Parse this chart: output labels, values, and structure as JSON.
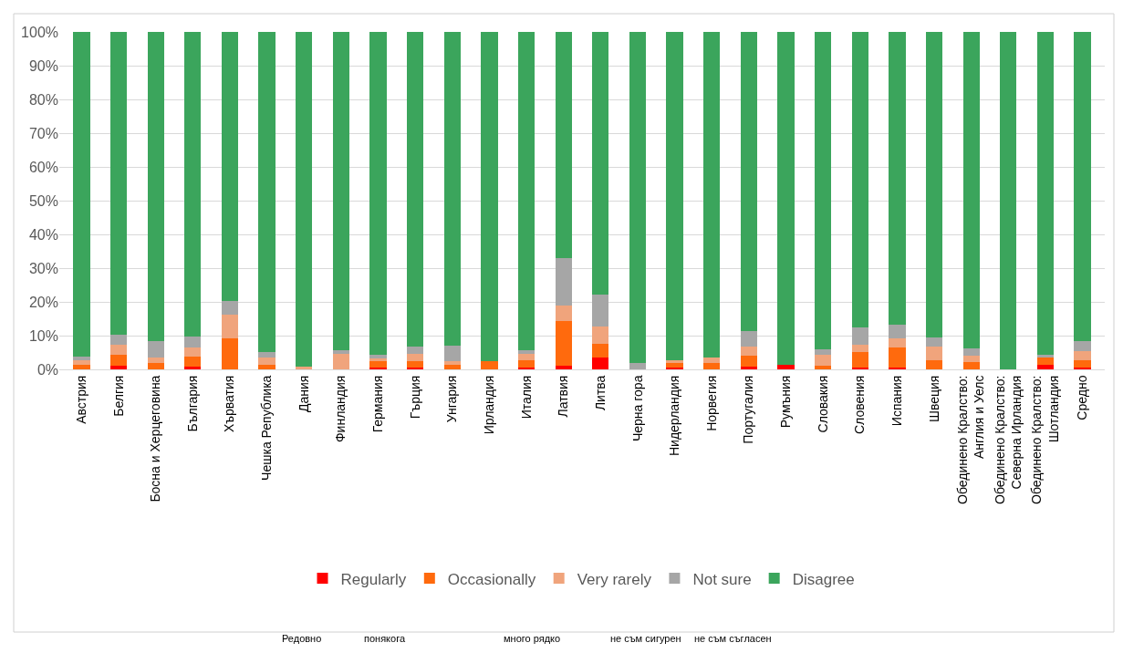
{
  "chart_data": {
    "type": "bar",
    "stacked": true,
    "categories": [
      "Австрия",
      "Белгия",
      "Босна и Херцеговина",
      "България",
      "Хърватия",
      "Чешка Република",
      "Дания",
      "Финландия",
      "Германия",
      "Гърция",
      "Унгария",
      "Ирландия",
      "Италия",
      "Латвия",
      "Литва",
      "Черна гора",
      "Нидерландия",
      "Норвегия",
      "Португалия",
      "Румъния",
      "Словакия",
      "Словения",
      "Испания",
      "Швеция",
      "Обединено Кралство: Англия и Уелс",
      "Обединено Кралство: Северна Ирландия",
      "Обединено Кралство: Шотландия",
      "Средно"
    ],
    "series": [
      {
        "name": "Regularly",
        "color": "#ff0000",
        "values": [
          0,
          1.2,
          0,
          0.7,
          0,
          0,
          0,
          0,
          0.5,
          0.5,
          0,
          0,
          0.5,
          1.2,
          3.4,
          0,
          0.5,
          0,
          0.9,
          1.4,
          0,
          0.5,
          0.5,
          0,
          0,
          0,
          1.4,
          0.5
        ]
      },
      {
        "name": "Occasionally",
        "color": "#ff6a0d",
        "values": [
          1.4,
          3.0,
          1.9,
          3.1,
          9.3,
          1.4,
          0,
          0,
          1.9,
          1.9,
          1.4,
          2.5,
          2.2,
          13.1,
          4.2,
          0,
          1.4,
          1.9,
          3.1,
          0,
          1.2,
          4.6,
          6.0,
          2.6,
          2.1,
          0,
          2.0,
          2.3
        ]
      },
      {
        "name": "Very rarely",
        "color": "#f0a47c",
        "values": [
          1.4,
          3.0,
          1.6,
          2.6,
          6.8,
          2.0,
          0.7,
          4.6,
          0.9,
          2.3,
          1.1,
          0,
          1.9,
          4.6,
          5.2,
          0,
          0.9,
          1.6,
          2.8,
          0,
          3.0,
          2.1,
          2.8,
          4.2,
          2.0,
          0,
          0,
          2.5
        ]
      },
      {
        "name": "Not sure",
        "color": "#a6a6a6",
        "values": [
          0.9,
          3.2,
          4.9,
          3.4,
          4.2,
          1.7,
          0,
          1.2,
          1.1,
          2.1,
          4.6,
          0,
          1.1,
          14.1,
          9.3,
          2.0,
          0,
          0,
          4.5,
          0,
          1.7,
          5.3,
          4.0,
          2.6,
          2.0,
          0,
          0.9,
          3.1
        ]
      },
      {
        "name": "Disagree",
        "color": "#3ba55c",
        "values": [
          96.3,
          89.6,
          91.6,
          90.2,
          79.7,
          94.9,
          99.3,
          94.2,
          95.6,
          93.2,
          92.9,
          97.5,
          94.3,
          67.0,
          77.9,
          98.0,
          97.2,
          96.5,
          88.7,
          98.6,
          94.1,
          87.5,
          86.7,
          90.6,
          93.9,
          100,
          95.7,
          91.6
        ]
      }
    ],
    "ylim": [
      0,
      100
    ],
    "yticks": [
      {
        "value": 0,
        "label": "0%"
      },
      {
        "value": 10,
        "label": "10%"
      },
      {
        "value": 20,
        "label": "20%"
      },
      {
        "value": 30,
        "label": "30%"
      },
      {
        "value": 40,
        "label": "40%"
      },
      {
        "value": 50,
        "label": "50%"
      },
      {
        "value": 60,
        "label": "60%"
      },
      {
        "value": 70,
        "label": "70%"
      },
      {
        "value": 80,
        "label": "80%"
      },
      {
        "value": 90,
        "label": "90%"
      },
      {
        "value": 100,
        "label": "100%"
      }
    ],
    "grid": "y",
    "legend": "bottom",
    "annotations": [
      "Редовно",
      "понякога",
      "много рядко",
      "не съм сигурен",
      "не съм съгласен"
    ]
  }
}
